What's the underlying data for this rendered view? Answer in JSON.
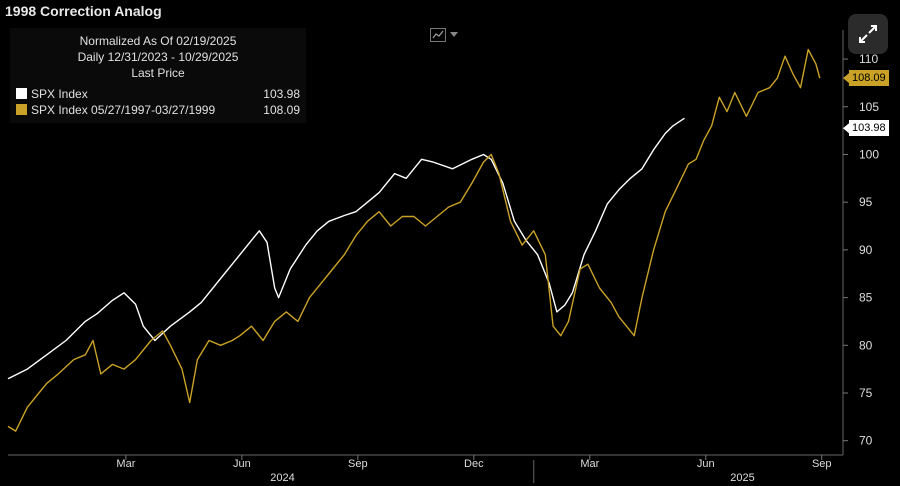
{
  "title": "1998 Correction Analog",
  "legend": {
    "header": [
      "Normalized As Of 02/19/2025",
      "Daily 12/31/2023 - 10/29/2025",
      "Last Price"
    ],
    "items": [
      {
        "label": "SPX Index",
        "value": "103.98",
        "color": "#ffffff"
      },
      {
        "label": "SPX Index 05/27/1997-03/27/1999",
        "value": "108.09",
        "color": "#c9a227"
      }
    ]
  },
  "icons": {
    "expand": "expand-arrows-icon",
    "chart_type": "line-chart-icon"
  },
  "chart_data": {
    "type": "line",
    "title": "1998 Correction Analog",
    "x_ticks": [
      "Mar",
      "Jun",
      "Sep",
      "Dec",
      "Mar",
      "Jun",
      "Sep"
    ],
    "x_years": [
      "2024",
      "2025"
    ],
    "y_ticks": [
      70,
      75,
      80,
      85,
      90,
      95,
      100,
      105,
      110
    ],
    "ylim": [
      68.5,
      112
    ],
    "xlim": [
      0,
      21.6
    ],
    "grid": false,
    "legend_position": "top-left",
    "last_value_tags": [
      "108.09",
      "103.98"
    ],
    "series": [
      {
        "name": "SPX Index",
        "color": "#ffffff",
        "points": [
          [
            0,
            76.5
          ],
          [
            0.5,
            77.5
          ],
          [
            1,
            79
          ],
          [
            1.5,
            80.5
          ],
          [
            2,
            82.5
          ],
          [
            2.3,
            83.3
          ],
          [
            2.7,
            84.7
          ],
          [
            3,
            85.5
          ],
          [
            3.3,
            84.3
          ],
          [
            3.5,
            82
          ],
          [
            3.8,
            80.5
          ],
          [
            4.2,
            82
          ],
          [
            4.7,
            83.5
          ],
          [
            5,
            84.5
          ],
          [
            5.5,
            87
          ],
          [
            5.8,
            88.5
          ],
          [
            6,
            89.5
          ],
          [
            6.3,
            91
          ],
          [
            6.5,
            92
          ],
          [
            6.7,
            90.8
          ],
          [
            6.9,
            86
          ],
          [
            7,
            85
          ],
          [
            7.3,
            88
          ],
          [
            7.7,
            90.5
          ],
          [
            8,
            92
          ],
          [
            8.3,
            93
          ],
          [
            8.7,
            93.6
          ],
          [
            9,
            94
          ],
          [
            9.3,
            95
          ],
          [
            9.6,
            96
          ],
          [
            10,
            98
          ],
          [
            10.3,
            97.5
          ],
          [
            10.7,
            99.5
          ],
          [
            11,
            99.2
          ],
          [
            11.5,
            98.5
          ],
          [
            12,
            99.5
          ],
          [
            12.3,
            100
          ],
          [
            12.5,
            99.5
          ],
          [
            12.8,
            97
          ],
          [
            13.1,
            93
          ],
          [
            13.4,
            91
          ],
          [
            13.7,
            89.5
          ],
          [
            14,
            86.5
          ],
          [
            14.2,
            83.5
          ],
          [
            14.4,
            84.2
          ],
          [
            14.6,
            85.5
          ],
          [
            14.9,
            89.5
          ],
          [
            15.2,
            92
          ],
          [
            15.5,
            94.8
          ],
          [
            15.8,
            96.3
          ],
          [
            16.1,
            97.5
          ],
          [
            16.4,
            98.5
          ],
          [
            16.7,
            100.5
          ],
          [
            17,
            102.2
          ],
          [
            17.2,
            103
          ],
          [
            17.5,
            103.8
          ]
        ]
      },
      {
        "name": "SPX Index 05/27/1997-03/27/1999",
        "color": "#c9a227",
        "points": [
          [
            0,
            71.5
          ],
          [
            0.2,
            71
          ],
          [
            0.5,
            73.5
          ],
          [
            0.8,
            75
          ],
          [
            1,
            76
          ],
          [
            1.3,
            77
          ],
          [
            1.7,
            78.5
          ],
          [
            2,
            79
          ],
          [
            2.2,
            80.5
          ],
          [
            2.4,
            77
          ],
          [
            2.7,
            78
          ],
          [
            3,
            77.5
          ],
          [
            3.3,
            78.5
          ],
          [
            3.7,
            80.5
          ],
          [
            4,
            81.5
          ],
          [
            4.2,
            80
          ],
          [
            4.5,
            77.5
          ],
          [
            4.7,
            74
          ],
          [
            4.9,
            78.5
          ],
          [
            5.2,
            80.5
          ],
          [
            5.5,
            80
          ],
          [
            5.8,
            80.5
          ],
          [
            6,
            81
          ],
          [
            6.3,
            82
          ],
          [
            6.6,
            80.5
          ],
          [
            6.9,
            82.5
          ],
          [
            7.2,
            83.5
          ],
          [
            7.5,
            82.5
          ],
          [
            7.8,
            85
          ],
          [
            8.1,
            86.5
          ],
          [
            8.4,
            88
          ],
          [
            8.7,
            89.5
          ],
          [
            9,
            91.5
          ],
          [
            9.3,
            93
          ],
          [
            9.6,
            94
          ],
          [
            9.9,
            92.5
          ],
          [
            10.2,
            93.5
          ],
          [
            10.5,
            93.5
          ],
          [
            10.8,
            92.5
          ],
          [
            11.1,
            93.5
          ],
          [
            11.4,
            94.5
          ],
          [
            11.7,
            95
          ],
          [
            12,
            97
          ],
          [
            12.3,
            99.2
          ],
          [
            12.5,
            100
          ],
          [
            12.7,
            98
          ],
          [
            13,
            93
          ],
          [
            13.3,
            90.5
          ],
          [
            13.6,
            92
          ],
          [
            13.9,
            89.5
          ],
          [
            14.1,
            82
          ],
          [
            14.3,
            81
          ],
          [
            14.5,
            82.5
          ],
          [
            14.8,
            88
          ],
          [
            15,
            88.5
          ],
          [
            15.3,
            86
          ],
          [
            15.6,
            84.5
          ],
          [
            15.8,
            83
          ],
          [
            16,
            82
          ],
          [
            16.2,
            81
          ],
          [
            16.4,
            85
          ],
          [
            16.7,
            90
          ],
          [
            17,
            94
          ],
          [
            17.3,
            96.5
          ],
          [
            17.6,
            99
          ],
          [
            17.8,
            99.5
          ],
          [
            18,
            101.5
          ],
          [
            18.2,
            103
          ],
          [
            18.4,
            106
          ],
          [
            18.6,
            104.5
          ],
          [
            18.8,
            106.5
          ],
          [
            19.1,
            104
          ],
          [
            19.4,
            106.5
          ],
          [
            19.7,
            107
          ],
          [
            19.9,
            108
          ],
          [
            20.1,
            110.3
          ],
          [
            20.3,
            108.5
          ],
          [
            20.5,
            107
          ],
          [
            20.7,
            111
          ],
          [
            20.9,
            109.5
          ],
          [
            21,
            108
          ]
        ]
      }
    ]
  }
}
